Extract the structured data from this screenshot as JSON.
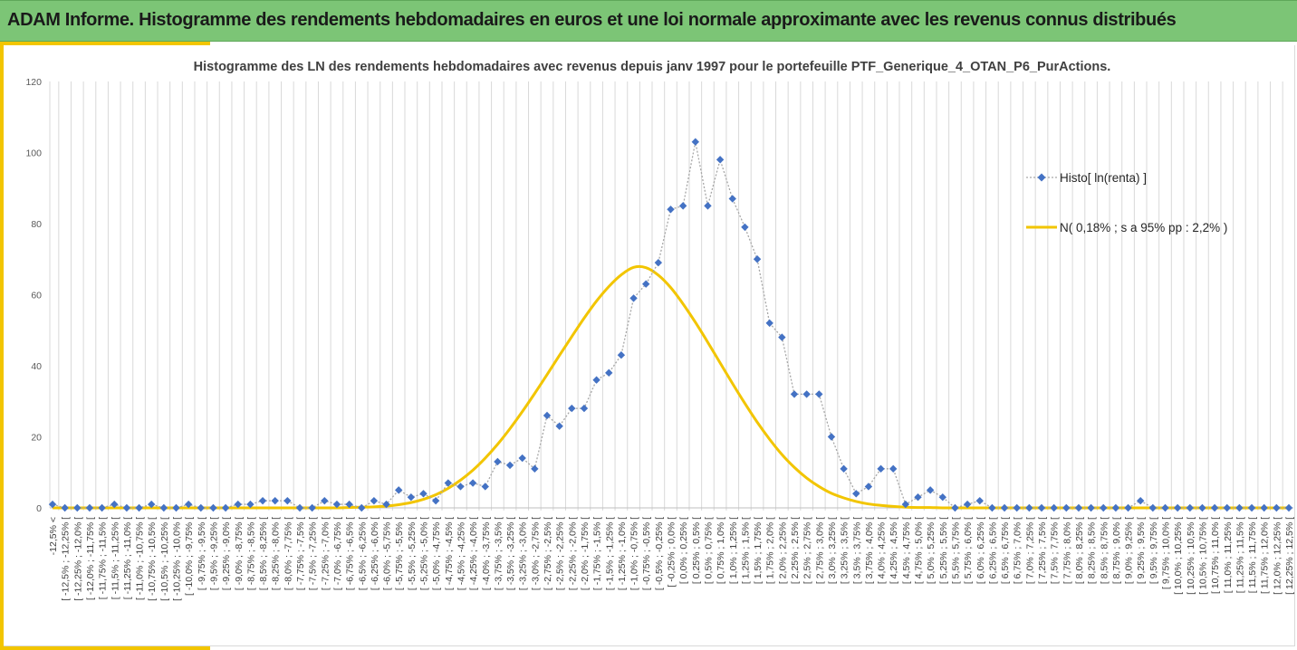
{
  "header": {
    "title": "ADAM Informe. Histogramme des rendements hebdomadaires en euros et une loi normale approximante avec les revenus connus distribués"
  },
  "chart_data": {
    "type": "line",
    "title": "Histogramme des LN des rendements hebdomadaires avec revenus depuis janv 1997 pour le portefeuille PTF_Generique_4_OTAN_P6_PurActions.",
    "xlabel": "",
    "ylabel": "",
    "ylim": [
      0,
      120
    ],
    "yticks": [
      "0",
      "20",
      "40",
      "60",
      "80",
      "100",
      "120"
    ],
    "grid": "vertical",
    "legend_position": "right",
    "categories": [
      "-12,5% <",
      "[ -12,5% ; -12,25% [",
      "[ -12,25% ; -12,0% [",
      "[ -12,0% ; -11,75% [",
      "[ -11,75% ; -11,5% [",
      "[ -11,5% ; -11,25% [",
      "[ -11,25% ; -11,0% [",
      "[ -11,0% ; -10,75% [",
      "[ -10,75% ; -10,5% [",
      "[ -10,5% ; -10,25% [",
      "[ -10,25% ; -10,0% [",
      "[ -10,0% ; -9,75% [",
      "[ -9,75% ; -9,5% [",
      "[ -9,5% ; -9,25% [",
      "[ -9,25% ; -9,0% [",
      "[ -9,0% ; -8,75% [",
      "[ -8,75% ; -8,5% [",
      "[ -8,5% ; -8,25% [",
      "[ -8,25% ; -8,0% [",
      "[ -8,0% ; -7,75% [",
      "[ -7,75% ; -7,5% [",
      "[ -7,5% ; -7,25% [",
      "[ -7,25% ; -7,0% [",
      "[ -7,0% ; -6,75% [",
      "[ -6,75% ; -6,5% [",
      "[ -6,5% ; -6,25% [",
      "[ -6,25% ; -6,0% [",
      "[ -6,0% ; -5,75% [",
      "[ -5,75% ; -5,5% [",
      "[ -5,5% ; -5,25% [",
      "[ -5,25% ; -5,0% [",
      "[ -5,0% ; -4,75% [",
      "[ -4,75% ; -4,5% [",
      "[ -4,5% ; -4,25% [",
      "[ -4,25% ; -4,0% [",
      "[ -4,0% ; -3,75% [",
      "[ -3,75% ; -3,5% [",
      "[ -3,5% ; -3,25% [",
      "[ -3,25% ; -3,0% [",
      "[ -3,0% ; -2,75% [",
      "[ -2,75% ; -2,5% [",
      "[ -2,5% ; -2,25% [",
      "[ -2,25% ; -2,0% [",
      "[ -2,0% ; -1,75% [",
      "[ -1,75% ; -1,5% [",
      "[ -1,5% ; -1,25% [",
      "[ -1,25% ; -1,0% [",
      "[ -1,0% ; -0,75% [",
      "[ -0,75% ; -0,5% [",
      "[ -0,5% ; -0,25% [",
      "[ -0,25% ; 0,0% [",
      "[ 0,0% ; 0,25% [",
      "[ 0,25% ; 0,5% [",
      "[ 0,5% ; 0,75% [",
      "[ 0,75% ; 1,0% [",
      "[ 1,0% ; 1,25% [",
      "[ 1,25% ; 1,5% [",
      "[ 1,5% ; 1,75% [",
      "[ 1,75% ; 2,0% [",
      "[ 2,0% ; 2,25% [",
      "[ 2,25% ; 2,5% [",
      "[ 2,5% ; 2,75% [",
      "[ 2,75% ; 3,0% [",
      "[ 3,0% ; 3,25% [",
      "[ 3,25% ; 3,5% [",
      "[ 3,5% ; 3,75% [",
      "[ 3,75% ; 4,0% [",
      "[ 4,0% ; 4,25% [",
      "[ 4,25% ; 4,5% [",
      "[ 4,5% ; 4,75% [",
      "[ 4,75% ; 5,0% [",
      "[ 5,0% ; 5,25% [",
      "[ 5,25% ; 5,5% [",
      "[ 5,5% ; 5,75% [",
      "[ 5,75% ; 6,0% [",
      "[ 6,0% ; 6,25% [",
      "[ 6,25% ; 6,5% [",
      "[ 6,5% ; 6,75% [",
      "[ 6,75% ; 7,0% [",
      "[ 7,0% ; 7,25% [",
      "[ 7,25% ; 7,5% [",
      "[ 7,5% ; 7,75% [",
      "[ 7,75% ; 8,0% [",
      "[ 8,0% ; 8,25% [",
      "[ 8,25% ; 8,5% [",
      "[ 8,5% ; 8,75% [",
      "[ 8,75% ; 9,0% [",
      "[ 9,0% ; 9,25% [",
      "[ 9,25% ; 9,5% [",
      "[ 9,5% ; 9,75% [",
      "[ 9,75% ; 10,0% [",
      "[ 10,0% ; 10,25% [",
      "[ 10,25% ; 10,5% [",
      "[ 10,5% ; 10,75% [",
      "[ 10,75% ; 11,0% [",
      "[ 11,0% ; 11,25% [",
      "[ 11,25% ; 11,5% [",
      "[ 11,5% ; 11,75% [",
      "[ 11,75% ; 12,0% [",
      "[ 12,0% ; 12,25% [",
      "[ 12,25% ; 12,5% ["
    ],
    "series": [
      {
        "name": "Histo[ ln(renta) ]",
        "style": "dotted-line-diamond-markers",
        "color": "#4472c4",
        "line_color": "#a6a6a6",
        "values": [
          1,
          0,
          0,
          0,
          0,
          1,
          0,
          0,
          1,
          0,
          0,
          1,
          0,
          0,
          0,
          1,
          1,
          2,
          2,
          2,
          0,
          0,
          2,
          1,
          1,
          0,
          2,
          1,
          5,
          3,
          4,
          2,
          7,
          6,
          7,
          6,
          13,
          12,
          14,
          11,
          26,
          23,
          28,
          28,
          36,
          38,
          43,
          59,
          63,
          69,
          84,
          85,
          103,
          85,
          98,
          87,
          79,
          70,
          52,
          48,
          32,
          32,
          32,
          20,
          11,
          4,
          6,
          11,
          11,
          1,
          3,
          5,
          3,
          0,
          1,
          2,
          0,
          0,
          0,
          0,
          0,
          0,
          0,
          0,
          0,
          0,
          0,
          0,
          2,
          0,
          0,
          0,
          0,
          0,
          0,
          0,
          0,
          0,
          0,
          0,
          0
        ]
      },
      {
        "name": "N( 0,18% ; s a 95% pp : 2,2% )",
        "style": "smooth-line",
        "color": "#f2c500",
        "values": [
          0,
          0,
          0,
          0,
          0,
          0,
          0,
          0,
          0,
          0,
          0,
          0,
          0,
          0,
          0,
          0,
          0,
          0,
          0,
          0,
          0,
          0,
          0,
          0,
          0.1,
          0.2,
          0.3,
          0.5,
          0.9,
          1.5,
          2.4,
          3.7,
          5.5,
          7.8,
          10.6,
          14.0,
          17.9,
          22.3,
          27.1,
          32.2,
          37.5,
          42.9,
          48.2,
          53.4,
          58.2,
          62.3,
          65.6,
          67.7,
          67.6,
          65.5,
          62.0,
          57.4,
          52.2,
          46.6,
          40.8,
          35.0,
          29.4,
          24.1,
          19.3,
          15.0,
          11.4,
          8.4,
          6.0,
          4.1,
          2.8,
          1.8,
          1.1,
          0.7,
          0.4,
          0.2,
          0.1,
          0.1,
          0,
          0,
          0,
          0,
          0,
          0,
          0,
          0,
          0,
          0,
          0,
          0,
          0,
          0,
          0,
          0,
          0,
          0,
          0,
          0,
          0,
          0,
          0,
          0,
          0,
          0,
          0,
          0,
          0
        ]
      }
    ]
  }
}
